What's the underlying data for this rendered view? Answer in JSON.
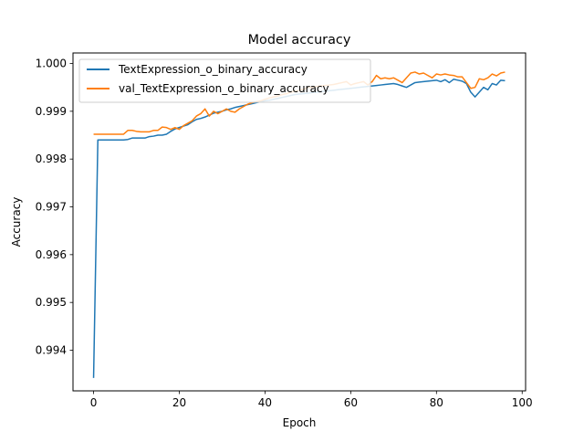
{
  "chart_data": {
    "type": "line",
    "title": "Model accuracy",
    "xlabel": "Epoch",
    "ylabel": "Accuracy",
    "xlim": [
      -4.8,
      100.8
    ],
    "ylim": [
      0.99315,
      1.00022
    ],
    "xticks": [
      0,
      20,
      40,
      60,
      80,
      100
    ],
    "xtick_labels": [
      "0",
      "20",
      "40",
      "60",
      "80",
      "100"
    ],
    "yticks": [
      0.994,
      0.995,
      0.996,
      0.997,
      0.998,
      0.999,
      1.0
    ],
    "ytick_labels": [
      "0.994",
      "0.995",
      "0.996",
      "0.997",
      "0.998",
      "0.999",
      "1.000"
    ],
    "grid": false,
    "legend_position": "upper-left",
    "colors": {
      "series_0": "#1f77b4",
      "series_1": "#ff7f0e"
    },
    "x": [
      0,
      1,
      2,
      3,
      4,
      5,
      6,
      7,
      8,
      9,
      10,
      11,
      12,
      13,
      14,
      15,
      16,
      17,
      18,
      19,
      20,
      21,
      22,
      23,
      24,
      25,
      26,
      27,
      28,
      29,
      30,
      31,
      32,
      33,
      34,
      35,
      36,
      37,
      38,
      39,
      40,
      41,
      42,
      43,
      44,
      45,
      46,
      47,
      48,
      49,
      50,
      51,
      52,
      53,
      54,
      55,
      56,
      57,
      58,
      59,
      60,
      61,
      62,
      63,
      64,
      65,
      66,
      67,
      68,
      69,
      70,
      71,
      72,
      73,
      74,
      75,
      76,
      77,
      78,
      79,
      80,
      81,
      82,
      83,
      84,
      85,
      86,
      87,
      88,
      89,
      90,
      91,
      92,
      93,
      94,
      95,
      96
    ],
    "series": [
      {
        "name": "TextExpression_o_binary_accuracy",
        "values": [
          0.99342,
          0.9984,
          0.9984,
          0.9984,
          0.9984,
          0.9984,
          0.9984,
          0.9984,
          0.99841,
          0.99844,
          0.99844,
          0.99844,
          0.99844,
          0.99847,
          0.99848,
          0.9985,
          0.9985,
          0.99852,
          0.99858,
          0.99863,
          0.99866,
          0.99869,
          0.99872,
          0.99878,
          0.99883,
          0.99885,
          0.99888,
          0.99892,
          0.99896,
          0.99898,
          0.999,
          0.99903,
          0.99905,
          0.99908,
          0.9991,
          0.99912,
          0.99914,
          0.99916,
          0.99918,
          0.9992,
          0.99922,
          0.99923,
          0.99925,
          0.99927,
          0.99929,
          0.99931,
          0.99933,
          0.99935,
          0.99936,
          0.99937,
          0.99938,
          0.99939,
          0.9994,
          0.99941,
          0.99942,
          0.99943,
          0.99944,
          0.99945,
          0.99946,
          0.99947,
          0.99948,
          0.99949,
          0.9995,
          0.99951,
          0.99952,
          0.99953,
          0.99954,
          0.99955,
          0.99956,
          0.99957,
          0.99958,
          0.99956,
          0.99953,
          0.9995,
          0.99955,
          0.9996,
          0.99961,
          0.99962,
          0.99963,
          0.99964,
          0.99965,
          0.99962,
          0.99966,
          0.9996,
          0.99967,
          0.99965,
          0.99963,
          0.99958,
          0.9994,
          0.9993,
          0.9994,
          0.9995,
          0.99945,
          0.99958,
          0.99955,
          0.99965,
          0.99964
        ]
      },
      {
        "name": "val_TextExpression_o_binary_accuracy",
        "values": [
          0.99852,
          0.99852,
          0.99852,
          0.99852,
          0.99852,
          0.99852,
          0.99852,
          0.99852,
          0.9986,
          0.9986,
          0.99858,
          0.99857,
          0.99857,
          0.99857,
          0.9986,
          0.9986,
          0.99867,
          0.99866,
          0.99862,
          0.99866,
          0.99862,
          0.9987,
          0.99875,
          0.9988,
          0.9989,
          0.99895,
          0.99905,
          0.9989,
          0.999,
          0.99895,
          0.999,
          0.99905,
          0.999,
          0.99898,
          0.99905,
          0.9991,
          0.99915,
          0.99918,
          0.9992,
          0.99922,
          0.99925,
          0.99928,
          0.9993,
          0.99932,
          0.99935,
          0.99937,
          0.9994,
          0.99942,
          0.99944,
          0.99946,
          0.9995,
          0.9995,
          0.99952,
          0.99953,
          0.99954,
          0.99955,
          0.99956,
          0.99958,
          0.9996,
          0.99962,
          0.99955,
          0.99958,
          0.9996,
          0.99962,
          0.99955,
          0.99962,
          0.99975,
          0.99968,
          0.9997,
          0.99968,
          0.9997,
          0.99965,
          0.9996,
          0.9997,
          0.9998,
          0.99982,
          0.99978,
          0.9998,
          0.99975,
          0.9997,
          0.99978,
          0.99976,
          0.99978,
          0.99976,
          0.99975,
          0.99972,
          0.99972,
          0.9996,
          0.99948,
          0.9995,
          0.99968,
          0.99966,
          0.9997,
          0.99978,
          0.99974,
          0.9998,
          0.99982
        ]
      }
    ]
  }
}
